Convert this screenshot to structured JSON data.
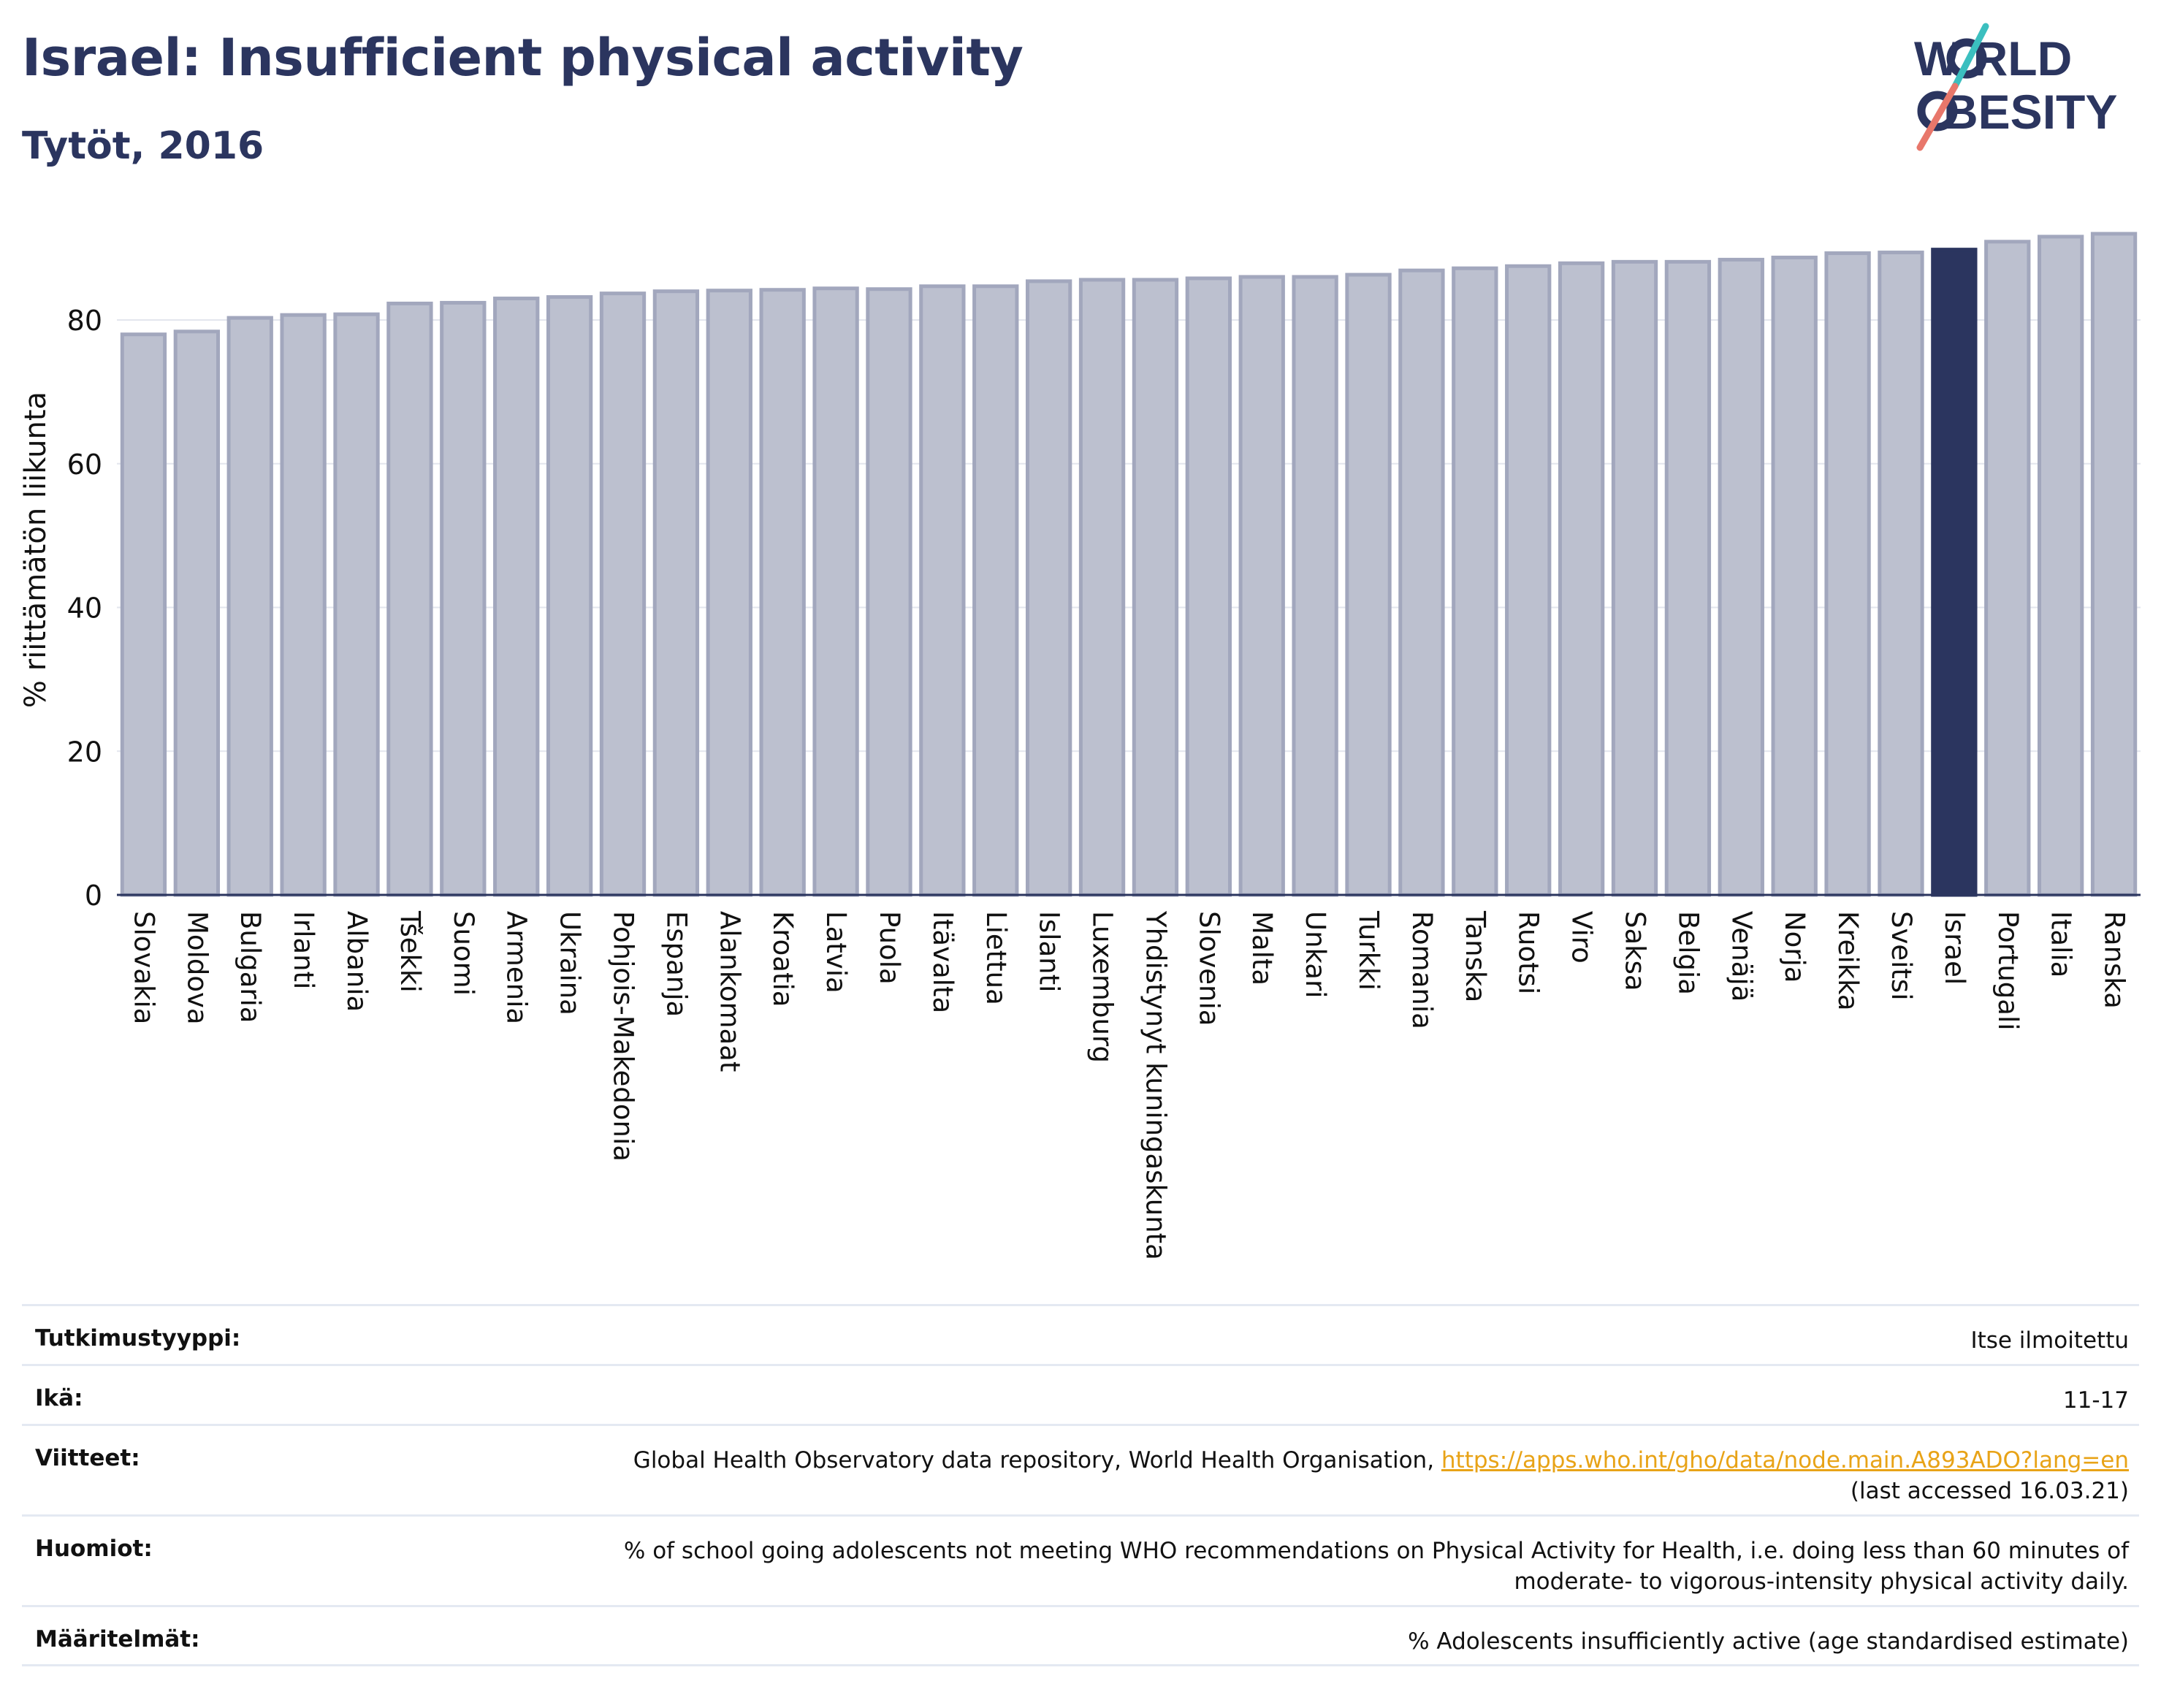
{
  "header": {
    "title": "Israel: Insufficient physical activity",
    "subtitle": "Tytöt, 2016"
  },
  "logo": {
    "line1": "W RLD",
    "line2": "BESITY",
    "alt": "WORLD OBESITY"
  },
  "colors": {
    "bar": "#bcc0cf",
    "bar_border": "#a2a7bd",
    "highlight": "#2b355f",
    "title": "#2b355f",
    "link": "#e8a317",
    "logo_teal": "#3bbfbf",
    "logo_coral": "#e8776b"
  },
  "chart_data": {
    "type": "bar",
    "ylabel": "% riittämätön liikunta",
    "xlabel": "",
    "ylim": [
      0,
      92
    ],
    "yticks": [
      0,
      20,
      40,
      60,
      80
    ],
    "grid": true,
    "highlight": "Israel",
    "categories": [
      "Slovakia",
      "Moldova",
      "Bulgaria",
      "Irlanti",
      "Albania",
      "Tšekki",
      "Suomi",
      "Armenia",
      "Ukraina",
      "Pohjois-Makedonia",
      "Espanja",
      "Alankomaat",
      "Kroatia",
      "Latvia",
      "Puola",
      "Itävalta",
      "Liettua",
      "Islanti",
      "Luxemburg",
      "Yhdistynyt kuningaskunta",
      "Slovenia",
      "Malta",
      "Unkari",
      "Turkki",
      "Romania",
      "Tanska",
      "Ruotsi",
      "Viro",
      "Saksa",
      "Belgia",
      "Venäjä",
      "Norja",
      "Kreikka",
      "Sveitsi",
      "Israel",
      "Portugali",
      "Italia",
      "Ranska"
    ],
    "values": [
      78.0,
      78.4,
      80.3,
      80.7,
      80.8,
      82.3,
      82.4,
      83.0,
      83.2,
      83.7,
      84.0,
      84.1,
      84.2,
      84.4,
      84.3,
      84.7,
      84.7,
      85.4,
      85.6,
      85.6,
      85.8,
      86.0,
      86.0,
      86.3,
      86.9,
      87.2,
      87.5,
      87.9,
      88.1,
      88.1,
      88.4,
      88.7,
      89.3,
      89.4,
      89.8,
      90.9,
      91.6,
      92.0
    ]
  },
  "meta": {
    "study_type_label": "Tutkimustyyppi:",
    "study_type_value": "Itse ilmoitettu",
    "age_label": "Ikä:",
    "age_value": "11-17",
    "references_label": "Viitteet:",
    "references_text": "Global Health Observatory data repository, World Health Organisation, ",
    "references_link": "https://apps.who.int/gho/data/node.main.A893ADO?lang=en",
    "references_accessed": "(last accessed 16.03.21)",
    "notes_label": "Huomiot:",
    "notes_line1": "% of school going adolescents not meeting WHO recommendations on Physical Activity for Health, i.e. doing less than 60 minutes of",
    "notes_line2": "moderate- to vigorous-intensity physical activity daily.",
    "definitions_label": "Määritelmät:",
    "definitions_value": "% Adolescents insufficiently active (age standardised estimate)"
  }
}
